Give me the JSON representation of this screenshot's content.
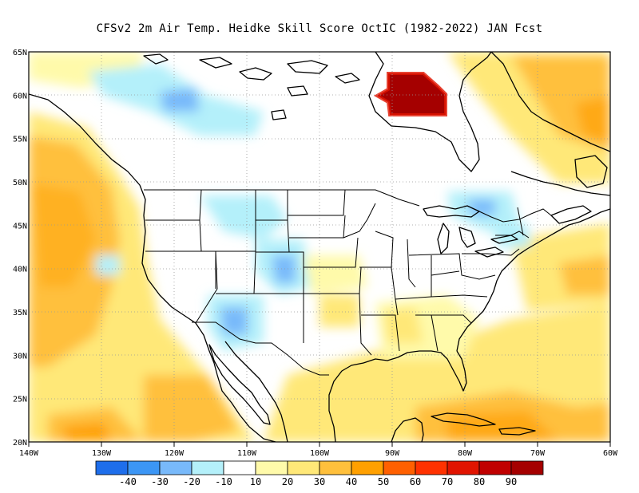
{
  "title": "CFSv2  2m Air Temp. Heidke Skill Score OctIC (1982-2022) JAN Fcst",
  "map": {
    "lat_labels": [
      "65N",
      "60N",
      "55N",
      "50N",
      "45N",
      "40N",
      "35N",
      "30N",
      "25N",
      "20N"
    ],
    "lon_labels": [
      "140W",
      "130W",
      "120W",
      "110W",
      "100W",
      "90W",
      "80W",
      "70W",
      "60W"
    ],
    "lat_values": [
      65,
      60,
      55,
      50,
      45,
      40,
      35,
      30,
      25,
      20
    ],
    "lon_values": [
      -140,
      -130,
      -120,
      -110,
      -100,
      -90,
      -80,
      -70,
      -60
    ]
  },
  "colorbar": {
    "colors": [
      "#1e6eeb",
      "#3c96f5",
      "#78b9fa",
      "#b4f0fa",
      "#ffffff",
      "#fffaaa",
      "#ffe878",
      "#ffc03c",
      "#ffa000",
      "#ff6000",
      "#ff3200",
      "#e11400",
      "#c00000",
      "#a50000"
    ],
    "labels": [
      "-40",
      "-30",
      "-20",
      "-10",
      "10",
      "20",
      "30",
      "40",
      "50",
      "60",
      "70",
      "80",
      "90"
    ]
  }
}
